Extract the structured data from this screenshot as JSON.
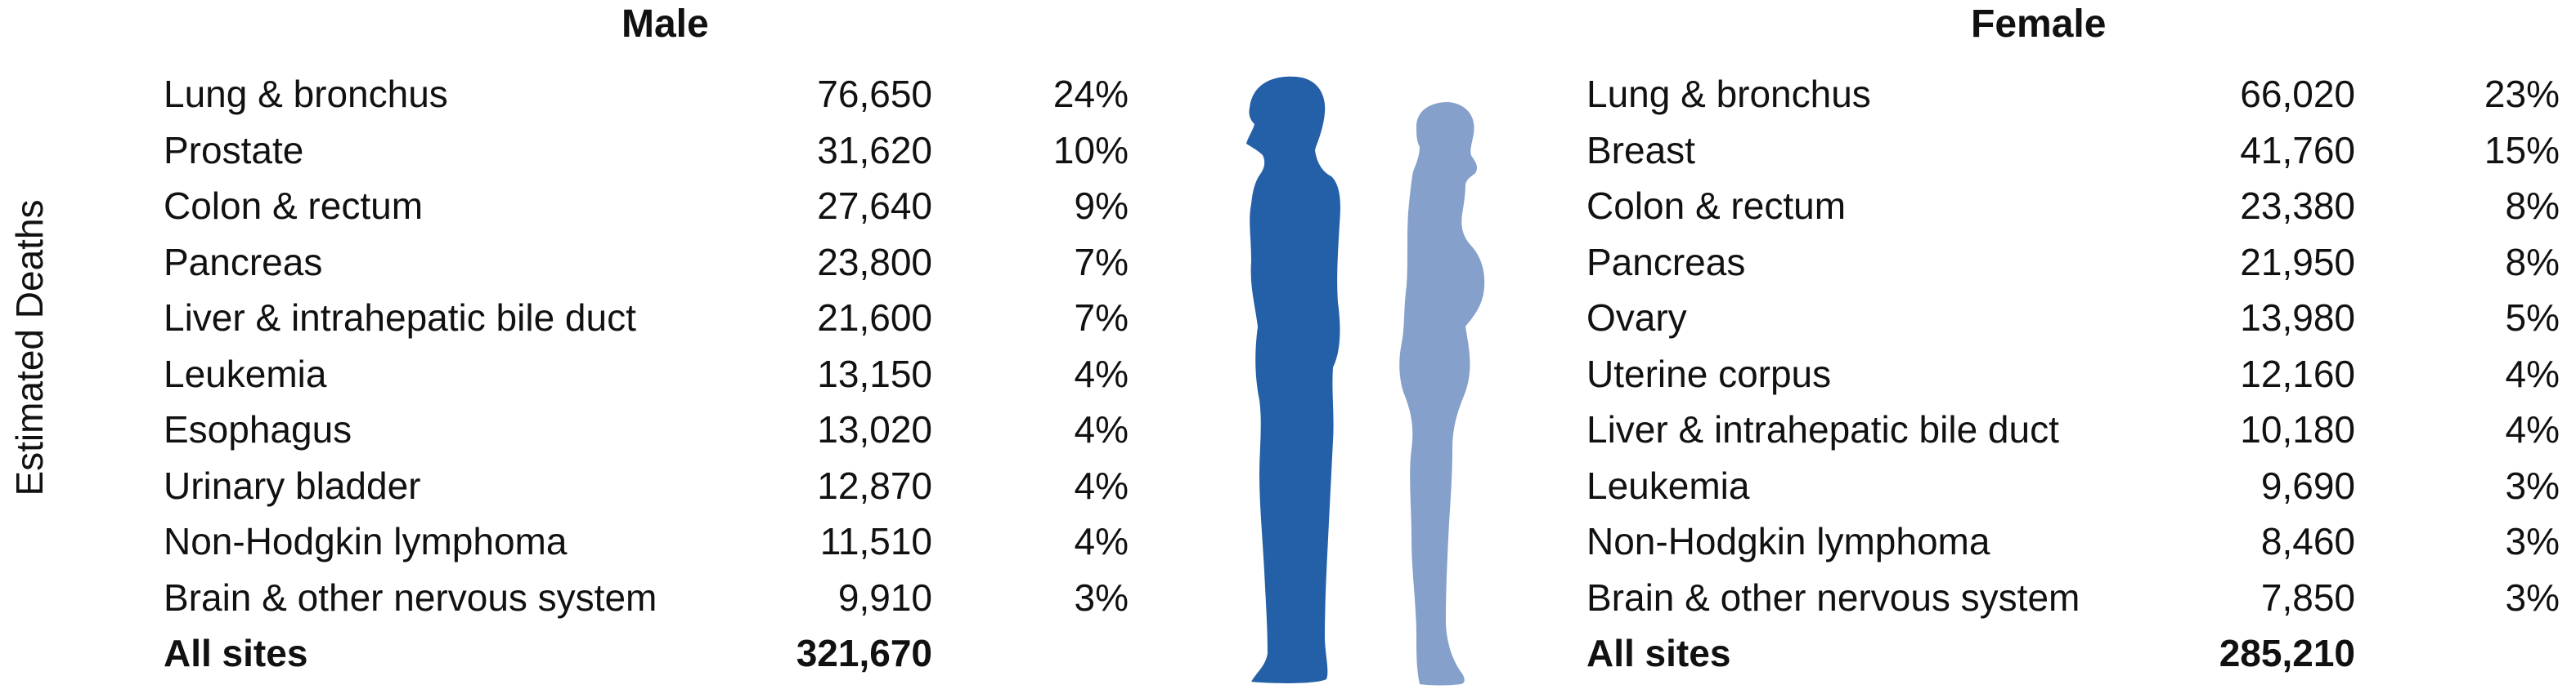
{
  "axis_label": "Estimated Deaths",
  "colors": {
    "male_figure": "#2460A7",
    "female_figure": "#85A0CB"
  },
  "male": {
    "title": "Male",
    "rows": [
      {
        "site": "Lung & bronchus",
        "deaths": "76,650",
        "percent": "24%"
      },
      {
        "site": "Prostate",
        "deaths": "31,620",
        "percent": "10%"
      },
      {
        "site": "Colon & rectum",
        "deaths": "27,640",
        "percent": "9%"
      },
      {
        "site": "Pancreas",
        "deaths": "23,800",
        "percent": "7%"
      },
      {
        "site": "Liver & intrahepatic bile duct",
        "deaths": "21,600",
        "percent": "7%"
      },
      {
        "site": "Leukemia",
        "deaths": "13,150",
        "percent": "4%"
      },
      {
        "site": "Esophagus",
        "deaths": "13,020",
        "percent": "4%"
      },
      {
        "site": "Urinary bladder",
        "deaths": "12,870",
        "percent": "4%"
      },
      {
        "site": "Non-Hodgkin lymphoma",
        "deaths": "11,510",
        "percent": "4%"
      },
      {
        "site": "Brain & other nervous system",
        "deaths": "9,910",
        "percent": "3%"
      }
    ],
    "total": {
      "site": "All sites",
      "deaths": "321,670"
    }
  },
  "female": {
    "title": "Female",
    "rows": [
      {
        "site": "Lung & bronchus",
        "deaths": "66,020",
        "percent": "23%"
      },
      {
        "site": "Breast",
        "deaths": "41,760",
        "percent": "15%"
      },
      {
        "site": "Colon & rectum",
        "deaths": "23,380",
        "percent": "8%"
      },
      {
        "site": "Pancreas",
        "deaths": "21,950",
        "percent": "8%"
      },
      {
        "site": "Ovary",
        "deaths": "13,980",
        "percent": "5%"
      },
      {
        "site": "Uterine corpus",
        "deaths": "12,160",
        "percent": "4%"
      },
      {
        "site": "Liver & intrahepatic bile duct",
        "deaths": "10,180",
        "percent": "4%"
      },
      {
        "site": "Leukemia",
        "deaths": "9,690",
        "percent": "3%"
      },
      {
        "site": "Non-Hodgkin lymphoma",
        "deaths": "8,460",
        "percent": "3%"
      },
      {
        "site": "Brain & other nervous system",
        "deaths": "7,850",
        "percent": "3%"
      }
    ],
    "total": {
      "site": "All sites",
      "deaths": "285,210"
    }
  }
}
